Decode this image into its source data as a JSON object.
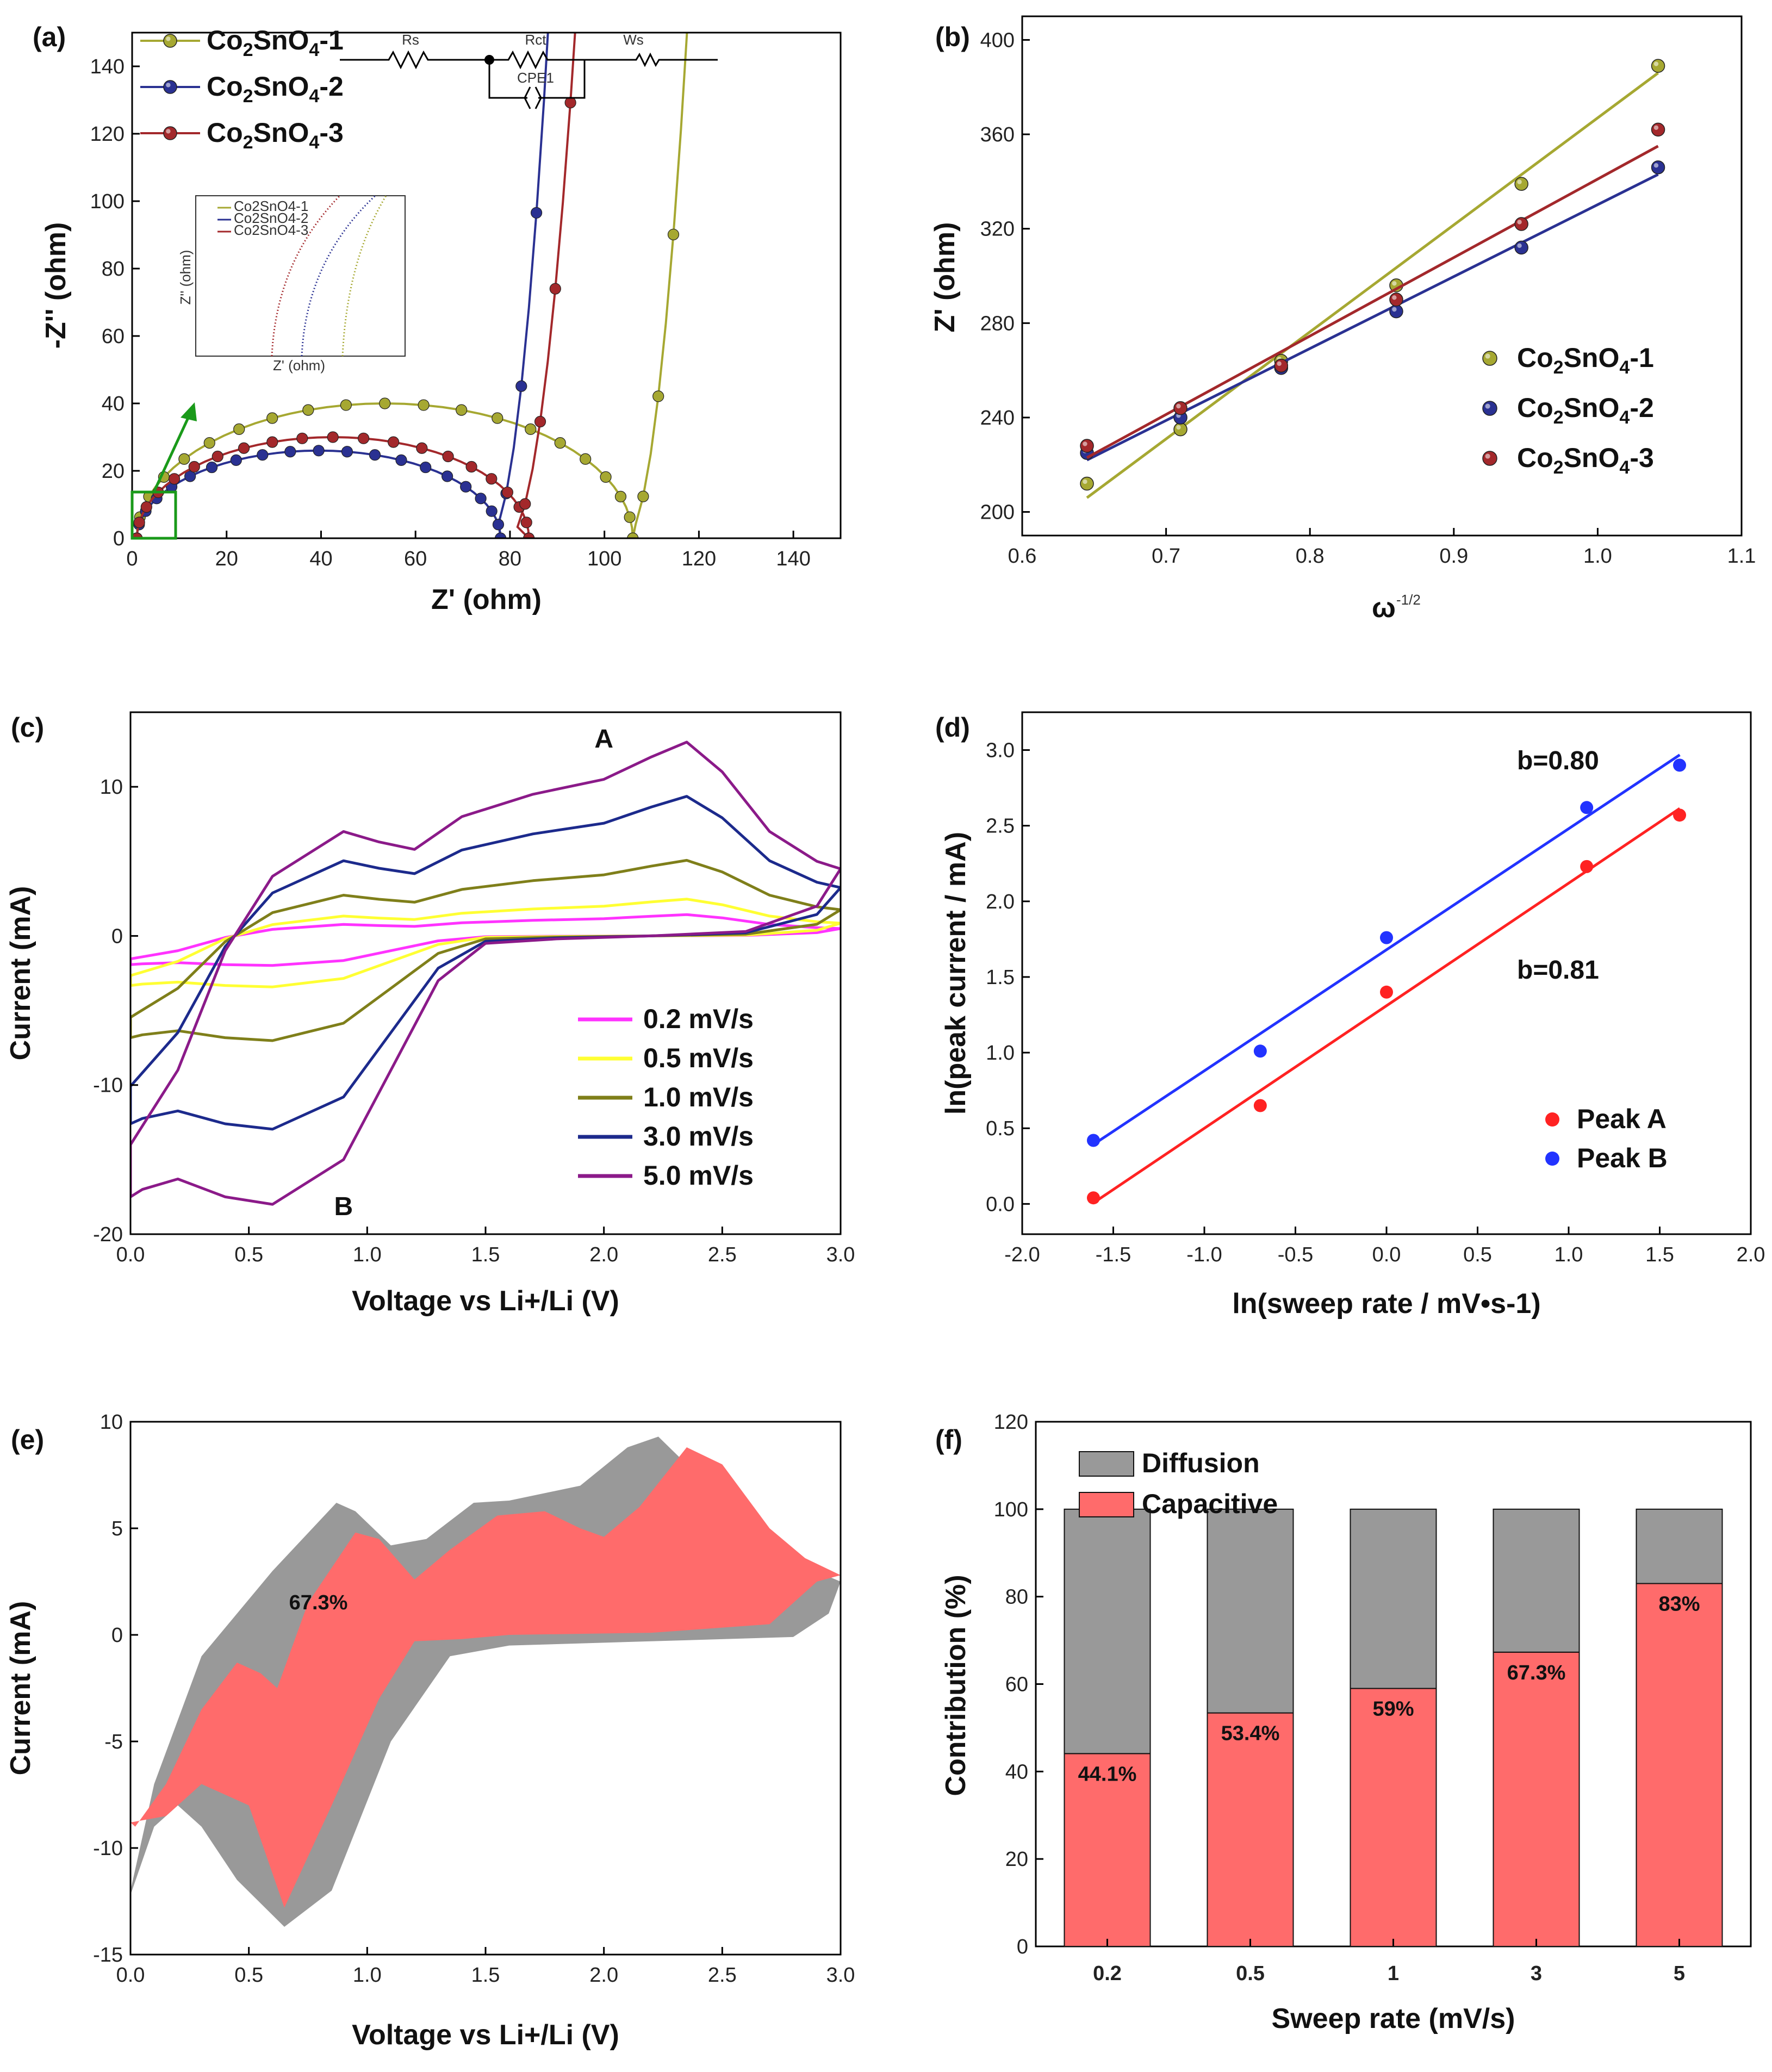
{
  "colors": {
    "olive": "#a6a832",
    "navy": "#2a3192",
    "maroon": "#a3282b",
    "magenta": "#ff33ff",
    "yellow": "#ffff33",
    "olive_dark": "#7f7f1a",
    "navy_dark": "#1c2a8c",
    "purple": "#8b1a89",
    "red": "#ff2222",
    "blue": "#2233ff",
    "capacitive": "#ff6b6b",
    "diffusion": "#999999",
    "box_green": "#1a9a1a"
  },
  "chart_data": [
    {
      "id": "a",
      "panel_label": "(a)",
      "type": "scatter",
      "xlabel": "Z' (ohm)",
      "ylabel": "-Z'' (ohm)",
      "xlim": [
        0,
        150
      ],
      "ylim": [
        0,
        150
      ],
      "xticks": [
        "0",
        "20",
        "40",
        "60",
        "80",
        "100",
        "120",
        "140"
      ],
      "yticks": [
        "0",
        "20",
        "40",
        "60",
        "80",
        "100",
        "120",
        "140"
      ],
      "legend": [
        "Co2SnO4-1",
        "Co2SnO4-2",
        "Co2SnO4-3"
      ],
      "circuit_labels": [
        "Rs",
        "Rct",
        "Ws",
        "CPE1"
      ],
      "inset_legend": [
        "Co2SnO4-1",
        "Co2SnO4-2",
        "Co2SnO4-3"
      ],
      "inset_xlabel": "Z' (ohm)",
      "inset_ylabel": "Z'' (ohm)",
      "series": [
        {
          "name": "Co2SnO4-1",
          "rs": 1,
          "rct": 105,
          "height": 40,
          "tail_start": 105,
          "tail_slope": 2.8
        },
        {
          "name": "Co2SnO4-2",
          "rs": 1,
          "rct": 77,
          "height": 26,
          "tail_start": 76,
          "tail_slope": 3.0
        },
        {
          "name": "Co2SnO4-3",
          "rs": 1,
          "rct": 83,
          "height": 30,
          "tail_start": 80,
          "tail_slope": 2.3
        }
      ]
    },
    {
      "id": "b",
      "panel_label": "(b)",
      "type": "scatter",
      "xlabel": "ω",
      "xlabel_sup": "-1/2",
      "ylabel": "Z' (ohm)",
      "xlim": [
        0.6,
        1.1
      ],
      "ylim": [
        190,
        410
      ],
      "xticks": [
        "0.6",
        "0.7",
        "0.8",
        "0.9",
        "1.0",
        "1.1"
      ],
      "yticks": [
        "200",
        "240",
        "280",
        "320",
        "360",
        "400"
      ],
      "x": [
        0.645,
        0.71,
        0.78,
        0.86,
        0.947,
        1.042
      ],
      "series": [
        {
          "name": "Co2SnO4-1",
          "values": [
            212,
            235,
            264,
            296,
            339,
            389
          ],
          "fit": [
            206,
            386
          ]
        },
        {
          "name": "Co2SnO4-2",
          "values": [
            225,
            240,
            261,
            285,
            312,
            346
          ],
          "fit": [
            222,
            343
          ]
        },
        {
          "name": "Co2SnO4-3",
          "values": [
            228,
            244,
            262,
            290,
            322,
            362
          ],
          "fit": [
            223,
            355
          ]
        }
      ]
    },
    {
      "id": "c",
      "panel_label": "(c)",
      "type": "line",
      "xlabel": "Voltage vs Li+/Li (V)",
      "ylabel": "Current (mA)",
      "xlim": [
        0,
        3.0
      ],
      "ylim": [
        -20,
        15
      ],
      "xticks": [
        "0.0",
        "0.5",
        "1.0",
        "1.5",
        "2.0",
        "2.5",
        "3.0"
      ],
      "yticks": [
        "-20",
        "-10",
        "0",
        "10"
      ],
      "annotations": [
        "A",
        "B"
      ],
      "series": [
        {
          "name": "0.2 mV/s",
          "scale": 0.11
        },
        {
          "name": "0.5 mV/s",
          "scale": 0.19
        },
        {
          "name": "1.0 mV/s",
          "scale": 0.39
        },
        {
          "name": "3.0 mV/s",
          "scale": 0.72
        },
        {
          "name": "5.0 mV/s",
          "scale": 1.0
        }
      ]
    },
    {
      "id": "d",
      "panel_label": "(d)",
      "type": "scatter",
      "xlabel": "ln(sweep rate / mV•s-1)",
      "ylabel": "ln(peak current / mA)",
      "xlim": [
        -2.0,
        2.0
      ],
      "ylim": [
        -0.2,
        3.25
      ],
      "xticks": [
        "-2.0",
        "-1.5",
        "-1.0",
        "-0.5",
        "0.0",
        "0.5",
        "1.0",
        "1.5",
        "2.0"
      ],
      "yticks": [
        "0.0",
        "0.5",
        "1.0",
        "1.5",
        "2.0",
        "2.5",
        "3.0"
      ],
      "x": [
        -1.609,
        -0.693,
        0.0,
        1.099,
        1.609
      ],
      "series": [
        {
          "name": "Peak A",
          "values": [
            0.04,
            0.65,
            1.4,
            2.23,
            2.57
          ],
          "slope": 0.81,
          "intercept": 1.31
        },
        {
          "name": "Peak B",
          "values": [
            0.42,
            1.01,
            1.76,
            2.62,
            2.9
          ],
          "slope": 0.8,
          "intercept": 1.68
        }
      ],
      "annotations": [
        "b=0.80",
        "b=0.81"
      ]
    },
    {
      "id": "e",
      "panel_label": "(e)",
      "type": "area",
      "xlabel": "Voltage vs Li+/Li (V)",
      "ylabel": "Current (mA)",
      "xlim": [
        0,
        3.0
      ],
      "ylim": [
        -15,
        10
      ],
      "xticks": [
        "0.0",
        "0.5",
        "1.0",
        "1.5",
        "2.0",
        "2.5",
        "3.0"
      ],
      "yticks": [
        "-15",
        "-10",
        "-5",
        "0",
        "5",
        "10"
      ],
      "annotation": "67.3%"
    },
    {
      "id": "f",
      "panel_label": "(f)",
      "type": "bar",
      "xlabel": "Sweep rate (mV/s)",
      "ylabel": "Contribution (%)",
      "ylim": [
        0,
        120
      ],
      "categories": [
        "0.2",
        "0.5",
        "1",
        "3",
        "5"
      ],
      "yticks": [
        "0",
        "20",
        "40",
        "60",
        "80",
        "100",
        "120"
      ],
      "series": [
        {
          "name": "Capacitive",
          "values": [
            44.1,
            53.4,
            59,
            67.3,
            83
          ]
        },
        {
          "name": "Diffusion",
          "values": [
            55.9,
            46.6,
            41,
            32.7,
            17
          ]
        }
      ],
      "value_labels": [
        "44.1%",
        "53.4%",
        "59%",
        "67.3%",
        "83%"
      ],
      "legend": [
        "Diffusion",
        "Capacitive"
      ]
    }
  ]
}
